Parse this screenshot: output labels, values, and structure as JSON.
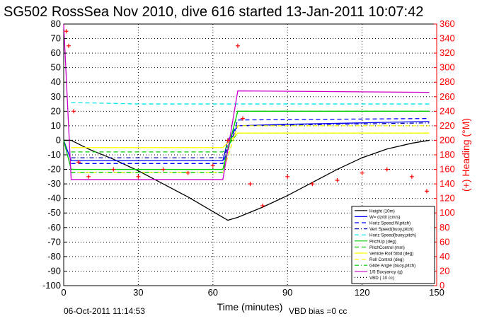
{
  "chart_data": {
    "type": "line",
    "title": "SG502 RossSea Nov 2010, dive 616 started 13-Jan-2011 10:07:42",
    "xlabel": "Time (minutes)",
    "ylabel_right": "(+) Heading (°M)",
    "xlim": [
      0,
      150
    ],
    "ylim": [
      -100,
      80
    ],
    "y2lim": [
      0,
      360
    ],
    "xticks": [
      "0",
      "30",
      "60",
      "90",
      "120",
      "150"
    ],
    "yticks": [
      "80",
      "70",
      "60",
      "50",
      "40",
      "30",
      "20",
      "10",
      "0",
      "-10",
      "-20",
      "-30",
      "-40",
      "-50",
      "-60",
      "-70",
      "-80",
      "-90",
      "-100"
    ],
    "y2ticks": [
      "360",
      "340",
      "320",
      "300",
      "280",
      "260",
      "240",
      "220",
      "200",
      "180",
      "160",
      "140",
      "120",
      "100",
      "80",
      "60",
      "40",
      "20",
      "0"
    ],
    "grid": true,
    "legend_position": "lower-right",
    "footer_left": "06-Oct-2011 11:14:53",
    "footer_right": "VBD bias =0 cc",
    "series": [
      {
        "name": "Height (10m)",
        "color": "#000000",
        "style": "solid",
        "x": [
          0,
          3,
          10,
          20,
          30,
          40,
          50,
          60,
          66,
          70,
          80,
          90,
          100,
          110,
          120,
          130,
          140,
          147
        ],
        "values": [
          0,
          0,
          -6,
          -13,
          -21,
          -30,
          -39,
          -49,
          -55,
          -53,
          -46,
          -38,
          -29,
          -20,
          -12,
          -6,
          -2,
          0
        ]
      },
      {
        "name": "W= dz/dt (cm/s)",
        "color": "#0000ff",
        "style": "solid",
        "x": [
          0,
          3,
          10,
          30,
          60,
          64,
          66,
          70,
          90,
          120,
          147
        ],
        "values": [
          0,
          -14,
          -14,
          -14,
          -14,
          -14,
          0,
          10,
          11,
          12,
          13
        ]
      },
      {
        "name": "Horiz Speed:W,pitch)",
        "color": "#0000ff",
        "style": "dashed",
        "x": [
          3,
          30,
          64,
          70,
          147
        ],
        "values": [
          -16,
          -16,
          -16,
          14,
          15
        ]
      },
      {
        "name": "Vert Speed(buoy,pitch)",
        "color": "#0000aa",
        "style": "dashdot",
        "x": [
          3,
          30,
          64,
          70,
          147
        ],
        "values": [
          -12,
          -12,
          -12,
          10,
          12
        ]
      },
      {
        "name": "Horiz Speed(buoy,pitch)",
        "color": "#00e5e5",
        "style": "dashed",
        "x": [
          3,
          30,
          64,
          70,
          147
        ],
        "values": [
          26,
          25,
          25,
          25,
          25
        ]
      },
      {
        "name": "PitchUp (deg)",
        "color": "#00cc00",
        "style": "solid",
        "x": [
          0,
          3,
          30,
          64,
          70,
          147
        ],
        "values": [
          0,
          -20,
          -20,
          -20,
          20,
          20
        ]
      },
      {
        "name": "PitchControl (mm)",
        "color": "#00cc00",
        "style": "dashed",
        "x": [
          3,
          30,
          64,
          70,
          147
        ],
        "values": [
          -8,
          -8,
          -8,
          5,
          5
        ]
      },
      {
        "name": "Vehicle Roll 5tbd (deg)",
        "color": "#ffff00",
        "style": "solid",
        "x": [
          3,
          64,
          70,
          147
        ],
        "values": [
          -5,
          -5,
          5,
          5
        ]
      },
      {
        "name": "Roll Control (deg)",
        "color": "#ffff00",
        "style": "dashed",
        "x": [
          3,
          64,
          70,
          147
        ],
        "values": [
          -22,
          -22,
          10,
          10
        ]
      },
      {
        "name": "Glide Angle (buoy,pitch)",
        "color": "#00cc00",
        "style": "dashdot",
        "x": [
          3,
          64,
          70,
          147
        ],
        "values": [
          -22,
          -22,
          20,
          20
        ]
      },
      {
        "name": "1/5 Buoyancy (g)",
        "color": "#cc00cc",
        "style": "solid",
        "x": [
          0,
          3,
          64,
          70,
          147
        ],
        "values": [
          80,
          -27,
          -27,
          34,
          33
        ]
      },
      {
        "name": "VBD ( 10 cc)",
        "color": "#000000",
        "style": "dotted",
        "x": [
          0,
          150
        ],
        "values": [
          0,
          0
        ]
      },
      {
        "name": "Heading",
        "color": "#ff0000",
        "style": "markers",
        "axis": "right",
        "x": [
          1,
          2,
          4,
          6,
          10,
          20,
          30,
          40,
          50,
          60,
          66,
          70,
          72,
          75,
          80,
          90,
          100,
          110,
          120,
          130,
          140,
          146
        ],
        "values": [
          350,
          330,
          240,
          170,
          150,
          160,
          150,
          160,
          155,
          165,
          200,
          330,
          230,
          140,
          110,
          150,
          140,
          145,
          155,
          160,
          150,
          130
        ]
      }
    ]
  }
}
